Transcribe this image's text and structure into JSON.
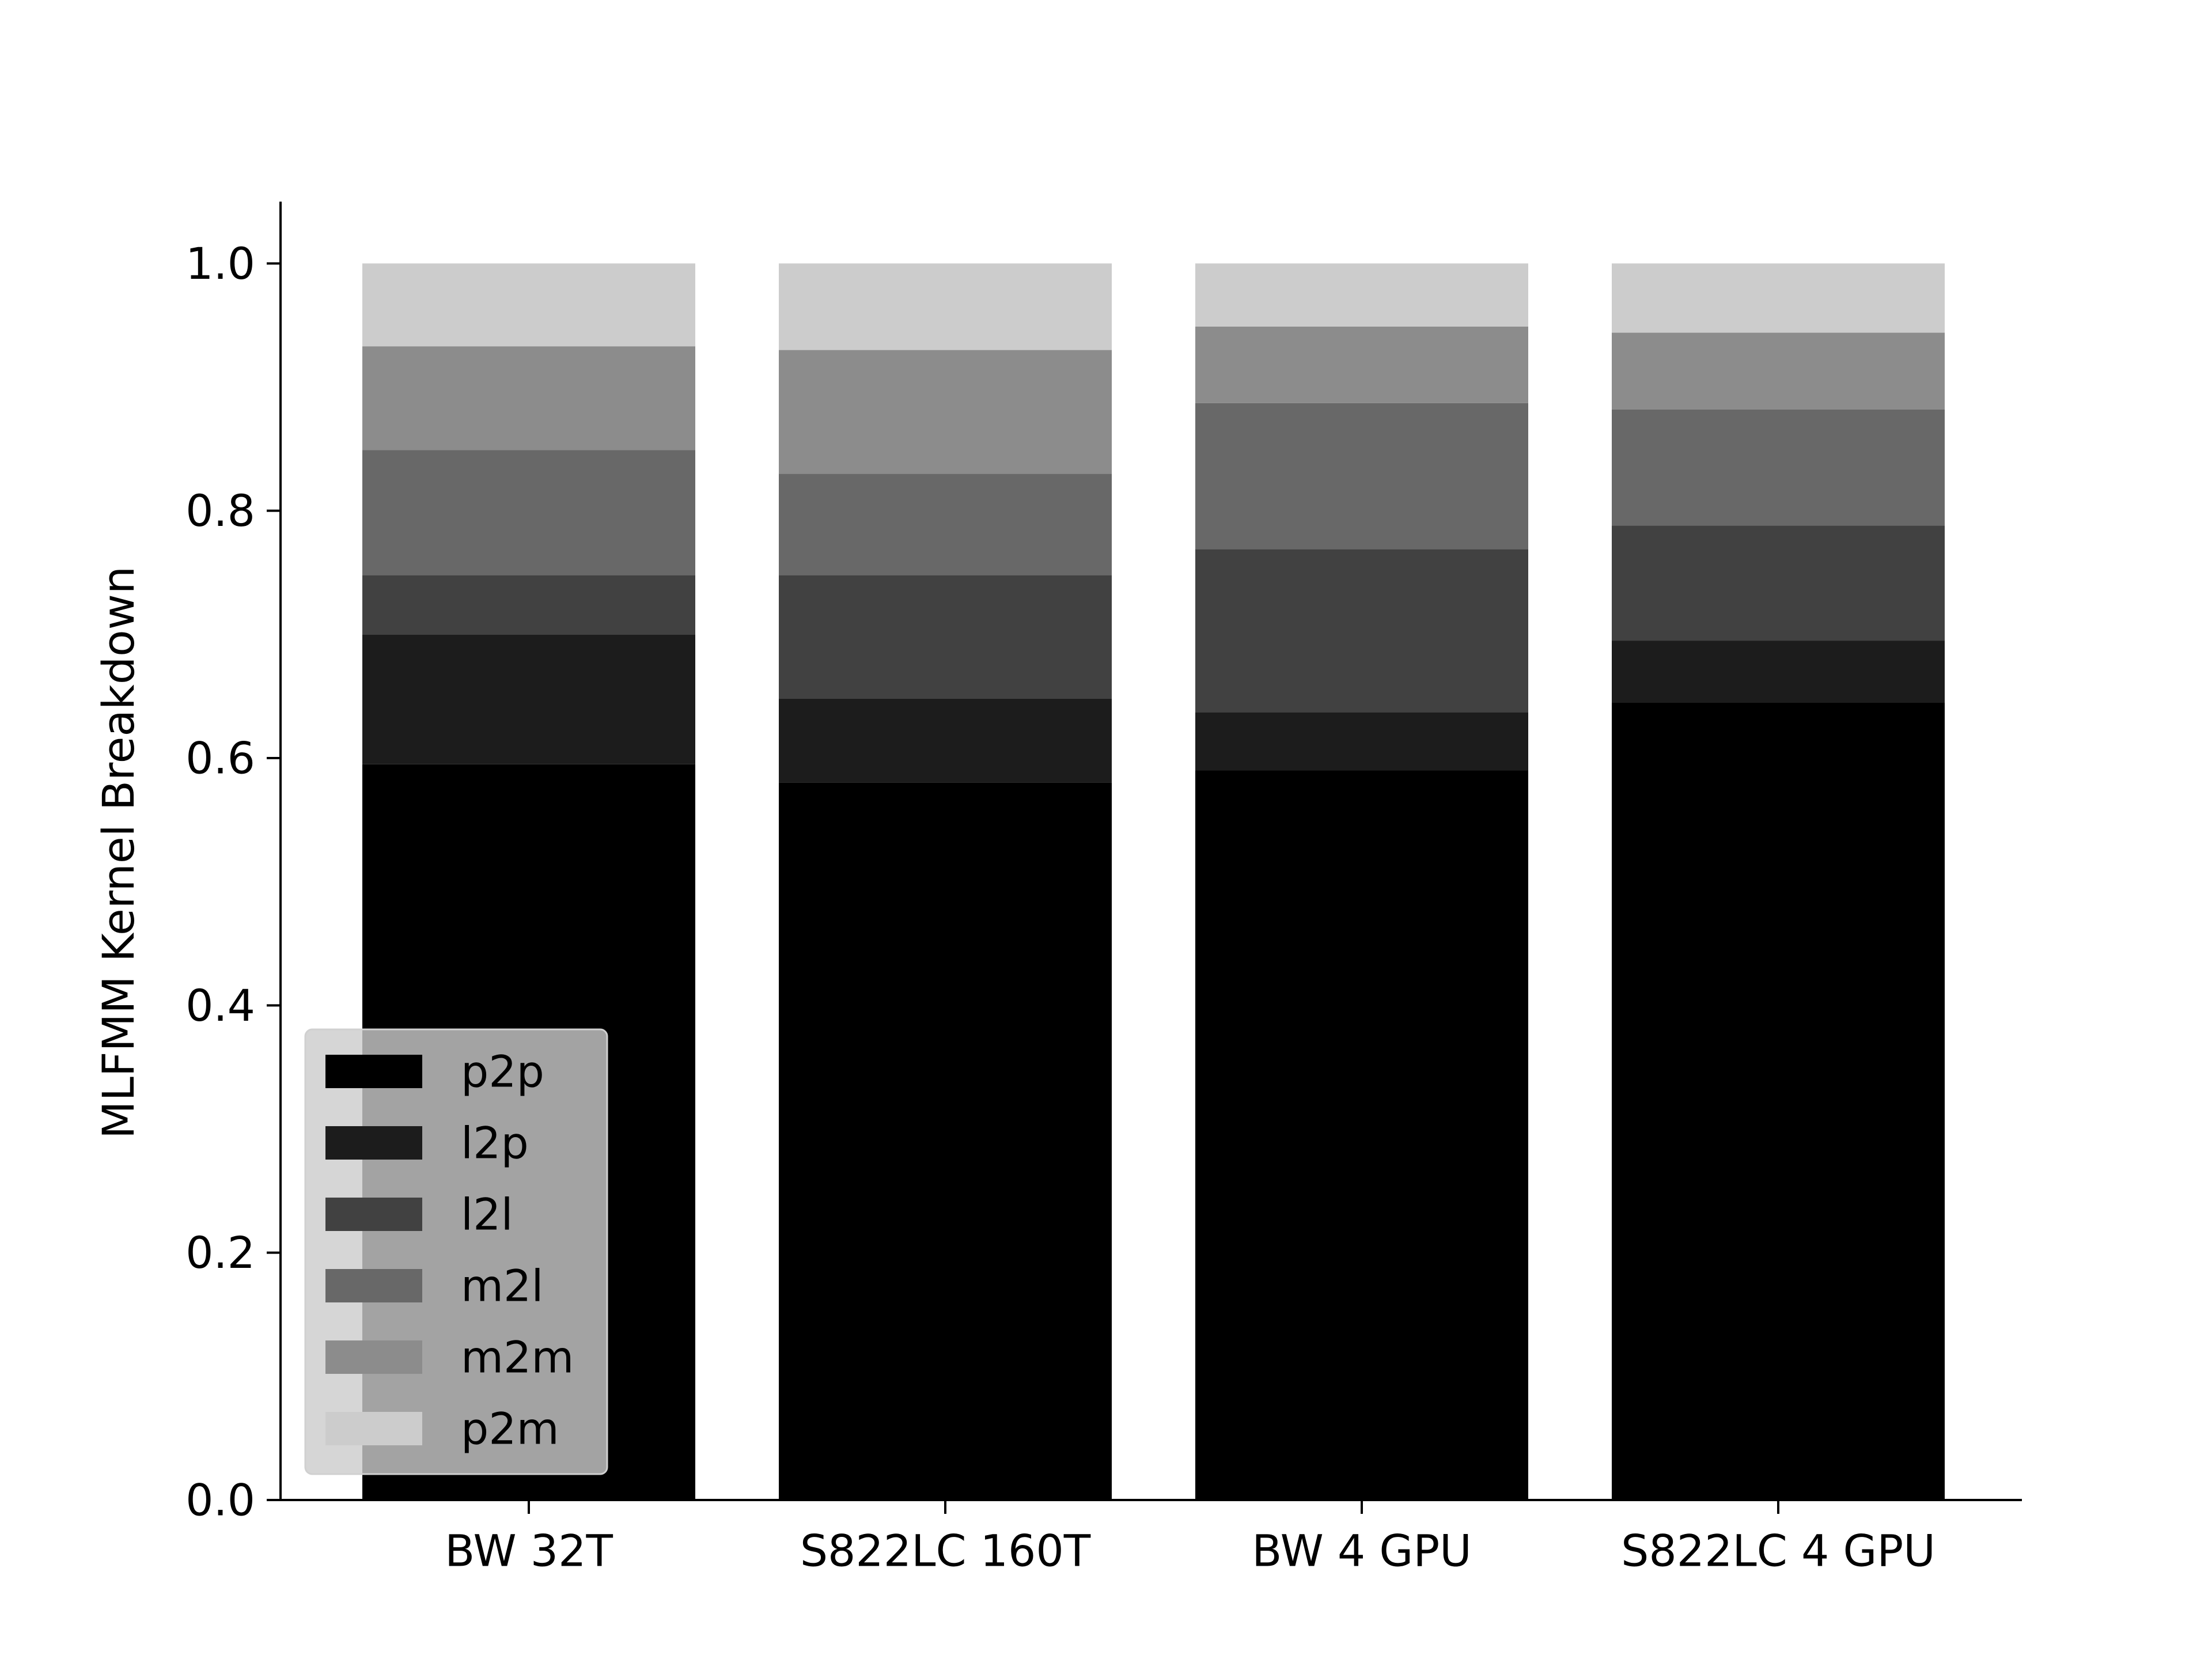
{
  "chart_data": {
    "type": "bar",
    "stacked": true,
    "categories": [
      "BW 32T",
      "S822LC 160T",
      "BW 4 GPU",
      "S822LC 4 GPU"
    ],
    "series": [
      {
        "name": "p2p",
        "color": "#000000",
        "values": [
          0.595,
          0.58,
          0.59,
          0.645
        ]
      },
      {
        "name": "l2p",
        "color": "#1c1c1c",
        "values": [
          0.105,
          0.068,
          0.047,
          0.05
        ]
      },
      {
        "name": "l2l",
        "color": "#414141",
        "values": [
          0.048,
          0.1,
          0.132,
          0.093
        ]
      },
      {
        "name": "m2l",
        "color": "#686868",
        "values": [
          0.101,
          0.082,
          0.118,
          0.094
        ]
      },
      {
        "name": "m2m",
        "color": "#8c8c8c",
        "values": [
          0.084,
          0.1,
          0.062,
          0.062
        ]
      },
      {
        "name": "p2m",
        "color": "#cccccc",
        "values": [
          0.067,
          0.07,
          0.051,
          0.056
        ]
      }
    ],
    "ylabel": "MLFMM Kernel Breakdown",
    "xlabel": "",
    "ylim": [
      0,
      1.05
    ],
    "yticks": [
      0.0,
      0.2,
      0.4,
      0.6,
      0.8,
      1.0
    ],
    "ytick_labels": [
      "0.0",
      "0.2",
      "0.4",
      "0.6",
      "0.8",
      "1.0"
    ],
    "grid": false,
    "legend_position": "lower-left"
  }
}
